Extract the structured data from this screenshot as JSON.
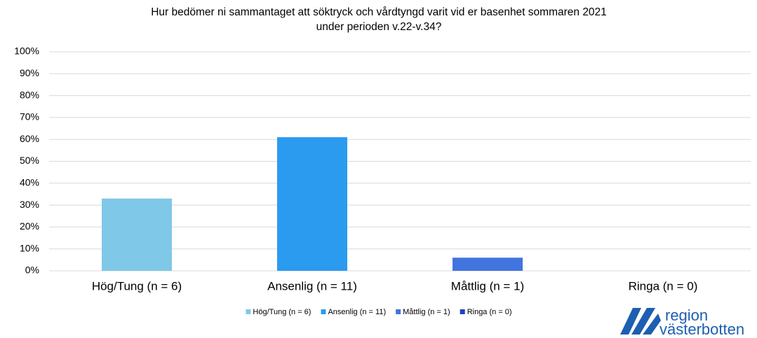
{
  "chart_data": {
    "type": "bar",
    "title": [
      "Hur bedömer ni sammantaget att söktryck och vårdtyngd varit vid er basenhet sommaren 2021",
      "under perioden v.22-v.34?"
    ],
    "categories": [
      "Hög/Tung (n = 6)",
      "Ansenlig (n = 11)",
      "Måttlig (n = 1)",
      "Ringa (n = 0)"
    ],
    "values": [
      33,
      61,
      6,
      0
    ],
    "colors": [
      "#7fc8e8",
      "#2b9bf0",
      "#4274e0",
      "#1f3fbf"
    ],
    "ylim": [
      0,
      100
    ],
    "yticks": [
      {
        "value": 0,
        "label": "0%"
      },
      {
        "value": 10,
        "label": "10%"
      },
      {
        "value": 20,
        "label": "20%"
      },
      {
        "value": 30,
        "label": "30%"
      },
      {
        "value": 40,
        "label": "40%"
      },
      {
        "value": 50,
        "label": "50%"
      },
      {
        "value": 60,
        "label": "60%"
      },
      {
        "value": 70,
        "label": "70%"
      },
      {
        "value": 80,
        "label": "80%"
      },
      {
        "value": 90,
        "label": "90%"
      },
      {
        "value": 100,
        "label": "100%"
      }
    ],
    "grid": true,
    "legend": "bottom"
  },
  "logo": [
    "region",
    "västerbotten"
  ]
}
